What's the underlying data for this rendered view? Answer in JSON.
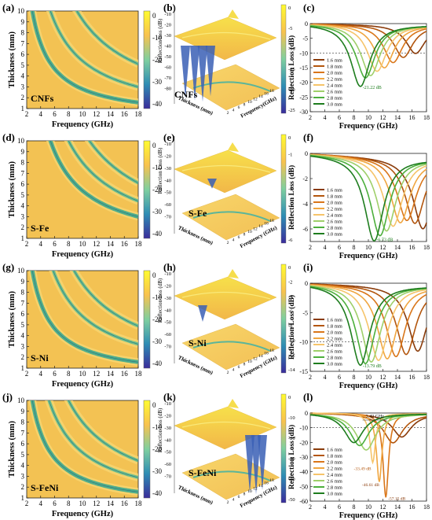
{
  "panel_labels": [
    "(a)",
    "(b)",
    "(c)",
    "(d)",
    "(e)",
    "(f)",
    "(g)",
    "(h)",
    "(i)",
    "(j)",
    "(k)",
    "(l)"
  ],
  "samples": [
    "CNFs",
    "S-Fe",
    "S-Ni",
    "S-FeNi"
  ],
  "colorbar_ticks": [
    "0",
    "-10",
    "-20",
    "-30",
    "-40"
  ],
  "legend_labels": [
    "1.6 mm",
    "1.8 mm",
    "2.0 mm",
    "2.2 mm",
    "2.4 mm",
    "2.6 mm",
    "2.8 mm",
    "3.0 mm"
  ],
  "colors": {
    "map_background": "#f3c253",
    "lines": [
      "#8a3b0a",
      "#b3560d",
      "#d9761a",
      "#f0a640",
      "#f6c46a",
      "#9fcf6a",
      "#4caf3c",
      "#1e7d1e"
    ],
    "colorbar": [
      "#fffb2f",
      "#f8c24e",
      "#7fcf9f",
      "#2e8db4",
      "#3a2c9b"
    ]
  },
  "chart_data": [
    {
      "panel": "a",
      "type": "heatmap",
      "sample": "CNFs",
      "xlabel": "Frequency (GHz)",
      "ylabel": "Thickness (mm)",
      "xlim": [
        2,
        18
      ],
      "ylim": [
        1,
        10
      ],
      "xticks": [
        "2",
        "4",
        "6",
        "8",
        "10",
        "12",
        "14",
        "16",
        "18"
      ],
      "yticks": [
        "1",
        "2",
        "3",
        "4",
        "5",
        "6",
        "7",
        "8",
        "9",
        "10"
      ],
      "colorbar_range": [
        0,
        -40
      ]
    },
    {
      "panel": "b",
      "type": "surface3d",
      "sample": "CNFs",
      "zlabel": "Reflection loss (dB)",
      "xlabel": "Frequency(GHz)",
      "ylabel": "Thickness (mm)",
      "zticks": [
        "-10",
        "-20",
        "-30",
        "-40",
        "-50",
        "-60",
        "-70",
        "-80"
      ],
      "colorbar_ticks": [
        "0",
        "-5",
        "-10",
        "-15",
        "-20",
        "-25"
      ]
    },
    {
      "panel": "c",
      "type": "line",
      "sample": "CNFs",
      "xlabel": "Frequency (GHz)",
      "ylabel": "Reflection Loss (dB)",
      "xlim": [
        2,
        18
      ],
      "ylim": [
        -30,
        0
      ],
      "xticks": [
        "2",
        "4",
        "6",
        "8",
        "10",
        "12",
        "14",
        "16",
        "18"
      ],
      "yticks": [
        "0",
        "-5",
        "-10",
        "-15",
        "-20",
        "-25",
        "-30"
      ],
      "reference_line": -10,
      "annotations": [
        "-21.22 dB"
      ],
      "series": [
        {
          "name": "1.6 mm",
          "min_freq": 16.5,
          "min_rl": -9.8
        },
        {
          "name": "1.8 mm",
          "min_freq": 14.8,
          "min_rl": -11.2
        },
        {
          "name": "2.0 mm",
          "min_freq": 13.4,
          "min_rl": -13.0
        },
        {
          "name": "2.2 mm",
          "min_freq": 12.2,
          "min_rl": -14.8
        },
        {
          "name": "2.4 mm",
          "min_freq": 11.2,
          "min_rl": -16.0
        },
        {
          "name": "2.6 mm",
          "min_freq": 10.3,
          "min_rl": -17.5
        },
        {
          "name": "2.8 mm",
          "min_freq": 9.6,
          "min_rl": -18.3
        },
        {
          "name": "3.0 mm",
          "min_freq": 8.9,
          "min_rl": -21.22
        }
      ]
    },
    {
      "panel": "d",
      "type": "heatmap",
      "sample": "S-Fe",
      "xlabel": "Frequency (GHz)",
      "ylabel": "Thickness (mm)",
      "xlim": [
        2,
        18
      ],
      "ylim": [
        1,
        10
      ],
      "xticks": [
        "2",
        "4",
        "6",
        "8",
        "10",
        "12",
        "14",
        "16",
        "18"
      ],
      "yticks": [
        "1",
        "2",
        "3",
        "4",
        "5",
        "6",
        "7",
        "8",
        "9",
        "10"
      ],
      "colorbar_range": [
        0,
        -40
      ]
    },
    {
      "panel": "e",
      "type": "surface3d",
      "sample": "S-Fe",
      "zlabel": "Reflection Loss (dB)",
      "xlabel": "Frequency (GHz)",
      "ylabel": "Thickness (mm)",
      "zticks": [
        "-10",
        "-20",
        "-30",
        "-40",
        "-50",
        "-60",
        "-70"
      ],
      "colorbar_ticks": [
        "0",
        "-1",
        "-2",
        "-3",
        "-4",
        "-5",
        "-6"
      ]
    },
    {
      "panel": "f",
      "type": "line",
      "sample": "S-Fe",
      "xlabel": "Frequency (GHz)",
      "ylabel": "Reflection Loss (dB)",
      "xlim": [
        2,
        18
      ],
      "ylim": [
        -7,
        0
      ],
      "xticks": [
        "2",
        "4",
        "6",
        "8",
        "10",
        "12",
        "14",
        "16",
        "18"
      ],
      "yticks": [
        "0",
        "-2",
        "-4",
        "-6"
      ],
      "annotations": [
        "-6.73 dB"
      ],
      "series": [
        {
          "name": "1.6 mm",
          "min_freq": 17.5,
          "min_rl": -5.6
        },
        {
          "name": "1.8 mm",
          "min_freq": 16.4,
          "min_rl": -5.2
        },
        {
          "name": "2.0 mm",
          "min_freq": 15.3,
          "min_rl": -5.0
        },
        {
          "name": "2.2 mm",
          "min_freq": 14.4,
          "min_rl": -5.2
        },
        {
          "name": "2.4 mm",
          "min_freq": 13.4,
          "min_rl": -5.5
        },
        {
          "name": "2.6 mm",
          "min_freq": 12.5,
          "min_rl": -5.9
        },
        {
          "name": "2.8 mm",
          "min_freq": 11.6,
          "min_rl": -6.3
        },
        {
          "name": "3.0 mm",
          "min_freq": 10.8,
          "min_rl": -6.73
        }
      ]
    },
    {
      "panel": "g",
      "type": "heatmap",
      "sample": "S-Ni",
      "xlabel": "Frequency (GHz)",
      "ylabel": "Thickness (mm)",
      "xlim": [
        2,
        18
      ],
      "ylim": [
        1,
        10
      ],
      "xticks": [
        "2",
        "4",
        "6",
        "8",
        "10",
        "12",
        "14",
        "16",
        "18"
      ],
      "yticks": [
        "1",
        "2",
        "3",
        "4",
        "5",
        "6",
        "7",
        "8",
        "9",
        "10"
      ],
      "colorbar_range": [
        0,
        -40
      ]
    },
    {
      "panel": "h",
      "type": "surface3d",
      "sample": "S-Ni",
      "zlabel": "Reflection loss (dB)",
      "xlabel": "Frequency (GHz)",
      "ylabel": "Thickness (mm)",
      "zticks": [
        "-10",
        "-20",
        "-30",
        "-40",
        "-50",
        "-60",
        "-70"
      ],
      "colorbar_ticks": [
        "0",
        "-2",
        "-4",
        "-6",
        "-8",
        "-10",
        "-12",
        "-14"
      ]
    },
    {
      "panel": "i",
      "type": "line",
      "sample": "S-Ni",
      "xlabel": "Frequency (GHz)",
      "ylabel": "Reflection Loss (dB)",
      "xlim": [
        2,
        18
      ],
      "ylim": [
        -15,
        0
      ],
      "xticks": [
        "2",
        "4",
        "6",
        "8",
        "10",
        "12",
        "14",
        "16",
        "18"
      ],
      "yticks": [
        "0",
        "-5",
        "-10",
        "-15"
      ],
      "reference_line": -10,
      "annotations": [
        "-13.79 dB"
      ],
      "series": [
        {
          "name": "1.6 mm",
          "min_freq": 16.8,
          "min_rl": -11.2
        },
        {
          "name": "1.8 mm",
          "min_freq": 15.2,
          "min_rl": -11.8
        },
        {
          "name": "2.0 mm",
          "min_freq": 13.8,
          "min_rl": -12.2
        },
        {
          "name": "2.2 mm",
          "min_freq": 12.6,
          "min_rl": -12.6
        },
        {
          "name": "2.4 mm",
          "min_freq": 11.4,
          "min_rl": -12.9
        },
        {
          "name": "2.6 mm",
          "min_freq": 10.4,
          "min_rl": -13.2
        },
        {
          "name": "2.8 mm",
          "min_freq": 9.6,
          "min_rl": -13.5
        },
        {
          "name": "3.0 mm",
          "min_freq": 8.9,
          "min_rl": -13.79
        }
      ]
    },
    {
      "panel": "j",
      "type": "heatmap",
      "sample": "S-FeNi",
      "xlabel": "Frequency (GHz)",
      "ylabel": "Thickness (mm)",
      "xlim": [
        2,
        18
      ],
      "ylim": [
        1,
        10
      ],
      "xticks": [
        "2",
        "4",
        "6",
        "8",
        "10",
        "12",
        "14",
        "16",
        "18"
      ],
      "yticks": [
        "1",
        "2",
        "3",
        "4",
        "5",
        "6",
        "7",
        "8",
        "9",
        "10"
      ],
      "colorbar_range": [
        0,
        -40
      ]
    },
    {
      "panel": "k",
      "type": "surface3d",
      "sample": "S-FeNi",
      "zlabel": "Reflection loss (dB)",
      "xlabel": "Frequency (GHz)",
      "ylabel": "Thickness (mm)",
      "zticks": [
        "-10",
        "-20",
        "-30",
        "-40",
        "-50",
        "-60",
        "-70"
      ],
      "colorbar_ticks": [
        "0",
        "-10",
        "-20",
        "-30",
        "-40",
        "-50"
      ]
    },
    {
      "panel": "l",
      "type": "line",
      "sample": "S-FeNi",
      "xlabel": "Frequency (GHz)",
      "ylabel": "Reflection Loss (dB)",
      "xlim": [
        2,
        18
      ],
      "ylim": [
        -60,
        0
      ],
      "xticks": [
        "2",
        "4",
        "6",
        "8",
        "10",
        "12",
        "14",
        "16",
        "18"
      ],
      "yticks": [
        "0",
        "-10",
        "-20",
        "-30",
        "-40",
        "-50",
        "-60"
      ],
      "reference_line": -10,
      "annotations": [
        "3.42 GHz",
        "-33.49 dB",
        "-46.61 dB",
        "-57.15 dB"
      ],
      "series": [
        {
          "name": "1.6 mm",
          "min_freq": 14.6,
          "min_rl": -16
        },
        {
          "name": "1.8 mm",
          "min_freq": 13.4,
          "min_rl": -20
        },
        {
          "name": "2.0 mm",
          "min_freq": 12.4,
          "min_rl": -57.15
        },
        {
          "name": "2.2 mm",
          "min_freq": 11.5,
          "min_rl": -46.61
        },
        {
          "name": "2.4 mm",
          "min_freq": 10.6,
          "min_rl": -33.49
        },
        {
          "name": "2.6 mm",
          "min_freq": 9.7,
          "min_rl": -25
        },
        {
          "name": "2.8 mm",
          "min_freq": 8.8,
          "min_rl": -22
        },
        {
          "name": "3.0 mm",
          "min_freq": 8.0,
          "min_rl": -20
        }
      ]
    }
  ]
}
